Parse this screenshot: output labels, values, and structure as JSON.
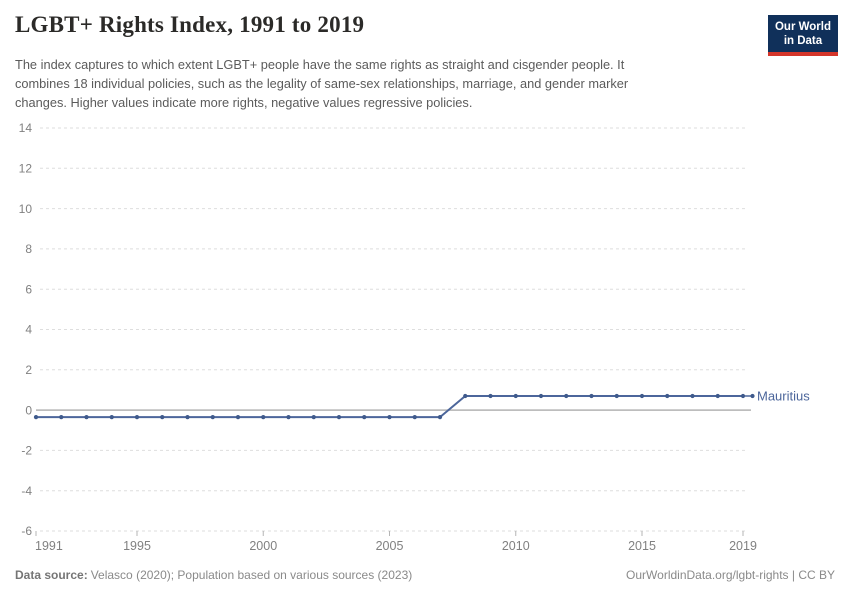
{
  "header": {
    "title": "LGBT+ Rights Index, 1991 to 2019",
    "subtitle_lines": [
      "The index captures to which extent LGBT+ people have the same rights as straight and cisgender people. It",
      "combines 18 individual policies, such as the legality of same-sex relationships, marriage, and gender marker",
      "changes. Higher values indicate more rights, negative values regressive policies."
    ],
    "logo": {
      "line1": "Our World",
      "line2": "in Data"
    }
  },
  "chart_data": {
    "type": "line",
    "title": "LGBT+ Rights Index, 1991 to 2019",
    "xlabel": "",
    "ylabel": "",
    "x": [
      1991,
      1992,
      1993,
      1994,
      1995,
      1996,
      1997,
      1998,
      1999,
      2000,
      2001,
      2002,
      2003,
      2004,
      2005,
      2006,
      2007,
      2008,
      2009,
      2010,
      2011,
      2012,
      2013,
      2014,
      2015,
      2016,
      2017,
      2018,
      2019
    ],
    "series": [
      {
        "name": "Mauritius",
        "color": "#4c669b",
        "values": [
          -0.35,
          -0.35,
          -0.35,
          -0.35,
          -0.35,
          -0.35,
          -0.35,
          -0.35,
          -0.35,
          -0.35,
          -0.35,
          -0.35,
          -0.35,
          -0.35,
          -0.35,
          -0.35,
          -0.35,
          0.7,
          0.7,
          0.7,
          0.7,
          0.7,
          0.7,
          0.7,
          0.7,
          0.7,
          0.7,
          0.7,
          0.7
        ]
      }
    ],
    "x_ticks": [
      1991,
      1995,
      2000,
      2005,
      2010,
      2015,
      2019
    ],
    "y_ticks": [
      14,
      12,
      10,
      8,
      6,
      4,
      2,
      0,
      -2,
      -4,
      -6
    ],
    "xlim": [
      1991,
      2019
    ],
    "ylim": [
      -6,
      14
    ],
    "grid": "horizontal-dashed",
    "zero_line": true,
    "legend_position": "end-of-line-label",
    "markers": "yearly-dots"
  },
  "footer": {
    "source_label": "Data source:",
    "source_text": "Velasco (2020); Population based on various sources (2023)",
    "citation": "OurWorldinData.org/lgbt-rights | CC BY"
  },
  "colors": {
    "line": "#4c669b",
    "marker": "#3f5a8c",
    "grid": "#dedede",
    "zero_line": "#bdbdbd",
    "tick_text": "#818181",
    "tick_mark": "#b5b5b5",
    "title": "#2b2a28",
    "subtitle": "#5b5b5b",
    "footer": "#8a8a8a",
    "logo_bg": "#10305a",
    "logo_accent": "#d4352a"
  }
}
